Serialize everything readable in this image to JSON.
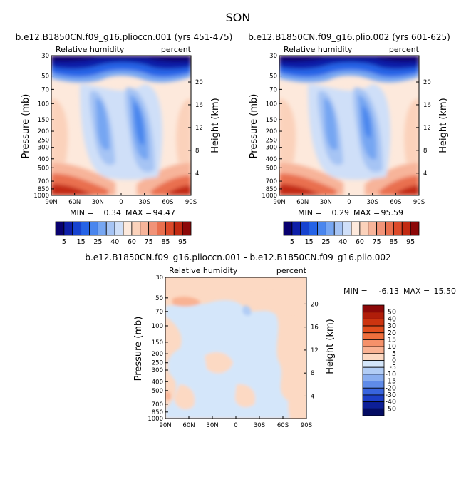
{
  "figure": {
    "season": "SON",
    "panel1_title": "b.e12.B1850CN.f09_g16.plioccn.001 (yrs 451-475)",
    "panel2_title": "b.e12.B1850CN.f09_g16.plio.002 (yrs 601-625)",
    "panel3_title": "b.e12.B1850CN.f09_g16.plioccn.001 - b.e12.B1850CN.f09_g16.plio.002",
    "variable": "Relative humidity",
    "units": "percent",
    "y_label": "Pressure (mb)",
    "y2_label": "Height (km)",
    "panel1_min_label": "MIN =",
    "panel1_min": "0.34",
    "panel1_max_label": "MAX =",
    "panel1_max": "94.47",
    "panel2_min_label": "MIN =",
    "panel2_min": "0.29",
    "panel2_max_label": "MAX =",
    "panel2_max": "95.59",
    "panel3_min_label": "MIN =",
    "panel3_min": "-6.13",
    "panel3_max_label": "MAX =",
    "panel3_max": "15.50"
  },
  "chart_data": [
    {
      "type": "heatmap",
      "title": "b.e12.B1850CN.f09_g16.plioccn.001 (yrs 451-475)",
      "left_label": "Relative humidity",
      "right_label": "percent",
      "ylabel": "Pressure (mb)",
      "y2label": "Height (km)",
      "x_ticks": [
        "90N",
        "60N",
        "30N",
        "0",
        "30S",
        "60S",
        "90S"
      ],
      "y_ticks": [
        "30",
        "50",
        "70",
        "100",
        "150",
        "200",
        "250",
        "300",
        "400",
        "500",
        "700",
        "850",
        "1000"
      ],
      "y2_ticks": [
        "20",
        "16",
        "12",
        "8",
        "4"
      ],
      "min": 0.34,
      "max": 94.47,
      "colorbar_levels": [
        5,
        10,
        15,
        20,
        25,
        30,
        40,
        50,
        60,
        65,
        70,
        75,
        80,
        85,
        90,
        95
      ],
      "colorbar_labels": [
        "5",
        "15",
        "25",
        "40",
        "60",
        "75",
        "85",
        "95"
      ]
    },
    {
      "type": "heatmap",
      "title": "b.e12.B1850CN.f09_g16.plio.002 (yrs 601-625)",
      "left_label": "Relative humidity",
      "right_label": "percent",
      "ylabel": "Pressure (mb)",
      "y2label": "Height (km)",
      "x_ticks": [
        "90N",
        "60N",
        "30N",
        "0",
        "30S",
        "60S",
        "90S"
      ],
      "y_ticks": [
        "30",
        "50",
        "70",
        "100",
        "150",
        "200",
        "250",
        "300",
        "400",
        "500",
        "700",
        "850",
        "1000"
      ],
      "y2_ticks": [
        "20",
        "16",
        "12",
        "8",
        "4"
      ],
      "min": 0.29,
      "max": 95.59,
      "colorbar_levels": [
        5,
        10,
        15,
        20,
        25,
        30,
        40,
        50,
        60,
        65,
        70,
        75,
        80,
        85,
        90,
        95
      ],
      "colorbar_labels": [
        "5",
        "15",
        "25",
        "40",
        "60",
        "75",
        "85",
        "95"
      ]
    },
    {
      "type": "heatmap",
      "title": "b.e12.B1850CN.f09_g16.plioccn.001 - b.e12.B1850CN.f09_g16.plio.002",
      "left_label": "Relative humidity",
      "right_label": "percent",
      "ylabel": "Pressure (mb)",
      "y2label": "Height (km)",
      "x_ticks": [
        "90N",
        "60N",
        "30N",
        "0",
        "30S",
        "60S",
        "90S"
      ],
      "y_ticks": [
        "30",
        "50",
        "70",
        "100",
        "150",
        "200",
        "250",
        "300",
        "400",
        "500",
        "700",
        "850",
        "1000"
      ],
      "y2_ticks": [
        "20",
        "16",
        "12",
        "8",
        "4"
      ],
      "min": -6.13,
      "max": 15.5,
      "colorbar_labels": [
        "50",
        "40",
        "30",
        "20",
        "15",
        "10",
        "5",
        "0",
        "-5",
        "-10",
        "-15",
        "-20",
        "-30",
        "-40",
        "-50"
      ]
    }
  ],
  "colors": {
    "abs_palette": [
      "#08006e",
      "#0e1fa8",
      "#1743cf",
      "#2563e6",
      "#4a86ee",
      "#76a6f2",
      "#a6c4f4",
      "#cfdff8",
      "#fde9dc",
      "#fbd2bb",
      "#f7b49a",
      "#f19378",
      "#e9704f",
      "#dc4a2a",
      "#c22a12",
      "#8c0808"
    ],
    "diff_palette": [
      "#8c0808",
      "#b01d0a",
      "#cc3410",
      "#e24e1e",
      "#ef6f3d",
      "#f5916a",
      "#f9b293",
      "#fcd9c3",
      "#d4e6fa",
      "#b2cdf5",
      "#8aaeef",
      "#5f8be8",
      "#3864de",
      "#1d3fc8",
      "#0d1f97",
      "#040c63"
    ]
  }
}
